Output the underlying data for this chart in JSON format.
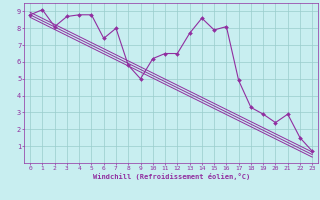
{
  "xlabel": "Windchill (Refroidissement éolien,°C)",
  "x_data": [
    0,
    1,
    2,
    3,
    4,
    5,
    6,
    7,
    8,
    9,
    10,
    11,
    12,
    13,
    14,
    15,
    16,
    17,
    18,
    19,
    20,
    21,
    22,
    23
  ],
  "y_data": [
    8.8,
    9.1,
    8.1,
    8.7,
    8.8,
    8.8,
    7.4,
    8.0,
    5.8,
    5.0,
    6.2,
    6.5,
    6.5,
    7.7,
    8.6,
    7.9,
    8.1,
    4.9,
    3.3,
    2.9,
    2.4,
    2.9,
    1.5,
    0.7
  ],
  "line_color": "#912ea0",
  "bg_color": "#c8eef0",
  "grid_color": "#99cccc",
  "axis_color": "#912ea0",
  "tick_color": "#912ea0",
  "xlim": [
    -0.5,
    23.5
  ],
  "ylim": [
    0,
    9.5
  ],
  "yticks": [
    1,
    2,
    3,
    4,
    5,
    6,
    7,
    8,
    9
  ],
  "xticks": [
    0,
    1,
    2,
    3,
    4,
    5,
    6,
    7,
    8,
    9,
    10,
    11,
    12,
    13,
    14,
    15,
    16,
    17,
    18,
    19,
    20,
    21,
    22,
    23
  ],
  "trend_line1_start": 8.95,
  "trend_line1_end": 0.65,
  "trend_line2_start": 8.65,
  "trend_line2_end": 0.35,
  "trend_line3_start": 8.8,
  "trend_line3_end": 0.5
}
